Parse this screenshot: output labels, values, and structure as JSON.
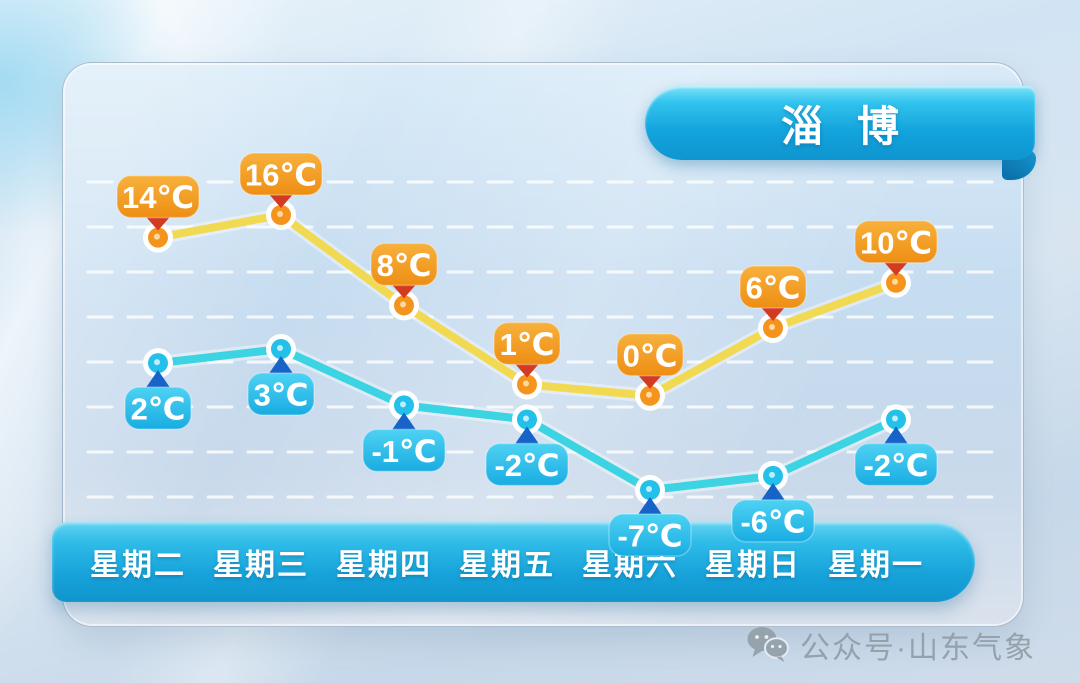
{
  "city_badge": {
    "label": "淄博"
  },
  "footer": {
    "label": "公众号·山东气象",
    "icon": "wechat-icon"
  },
  "colors": {
    "ribbon_blue": "#14a4dd",
    "day_bar_blue": "#17a3da",
    "panel_blue": "#c6dcf0",
    "footer_text": "#95a1ab"
  },
  "chart_data": {
    "type": "line",
    "categories": [
      "星期二",
      "星期三",
      "星期四",
      "星期五",
      "星期六",
      "星期日",
      "星期一"
    ],
    "series": [
      {
        "name": "high",
        "values": [
          14,
          16,
          8,
          1,
          0,
          6,
          10
        ],
        "unit": "℃",
        "label_position": "above",
        "line_color": "#f2d952",
        "point_color": "#f5941d",
        "point_center": "#ffd9a0",
        "label_bg_top": "#f7b13c",
        "label_bg_bottom": "#ee8e14",
        "pointer_color": "#d23b22"
      },
      {
        "name": "low",
        "values": [
          2,
          3,
          -1,
          -2,
          -7,
          -6,
          -2
        ],
        "unit": "℃",
        "label_position": "below",
        "line_color": "#3cd3e2",
        "point_color": "#23c0ea",
        "point_center": "#bdeefd",
        "label_bg_top": "#4ed2f3",
        "label_bg_bottom": "#19ace2",
        "pointer_color": "#1863c8"
      }
    ],
    "grid": "dashed-horizontal-white",
    "legend": "none",
    "value_labels": "shown-on-every-point"
  }
}
